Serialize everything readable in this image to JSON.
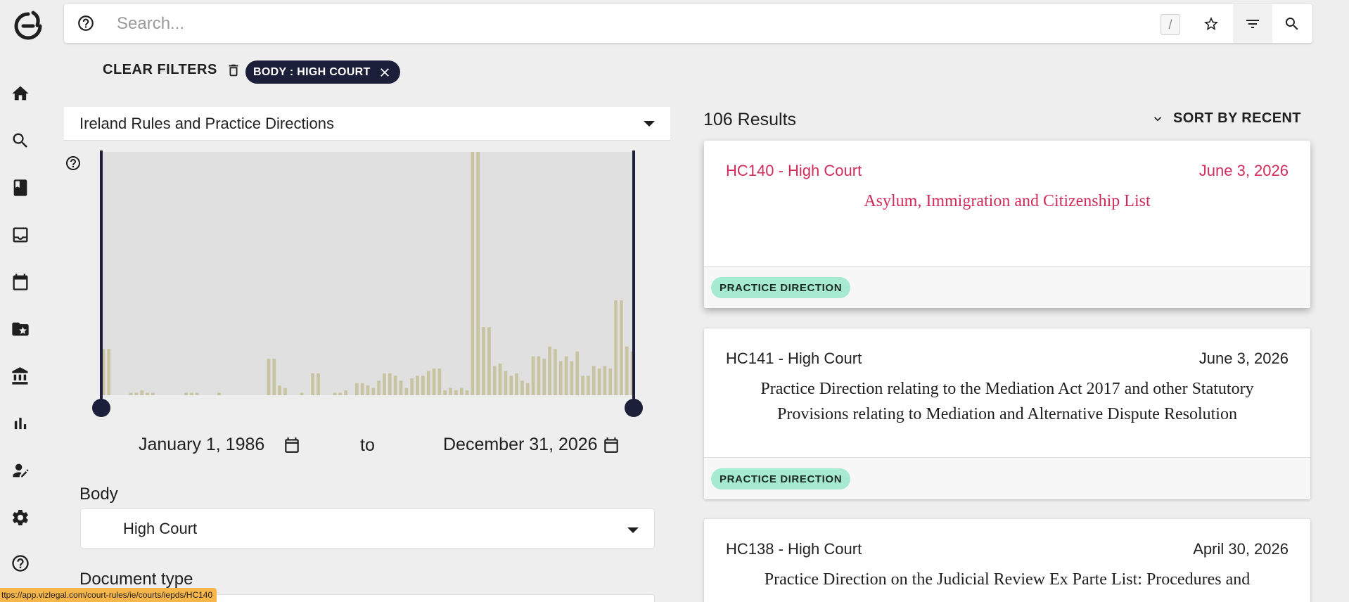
{
  "search": {
    "placeholder": "Search...",
    "shortcut": "/"
  },
  "filters": {
    "clear_label": "CLEAR FILTERS",
    "active_chip": "BODY : HIGH COURT",
    "collection": "Ireland Rules and Practice Directions",
    "date_from": "January 1, 1986",
    "date_to": "December 31, 2026",
    "to_label": "to",
    "body_label": "Body",
    "body_value": "High Court",
    "doctype_label": "Document type"
  },
  "results": {
    "count_label": "106 Results",
    "sort_label": "SORT BY RECENT",
    "cards": [
      {
        "code": "HC140 - High Court",
        "date": "June 3, 2026",
        "title": "Asylum, Immigration and Citizenship List",
        "tag": "PRACTICE DIRECTION"
      },
      {
        "code": "HC141 - High Court",
        "date": "June 3, 2026",
        "title": "Practice Direction relating to the Mediation Act 2017 and other Statutory Provisions relating to Mediation and Alternative Dispute Resolution",
        "tag": "PRACTICE DIRECTION"
      },
      {
        "code": "HC138 - High Court",
        "date": "April 30, 2026",
        "title": "Practice Direction on the Judicial Review Ex Parte List: Procedures and",
        "tag": ""
      }
    ]
  },
  "histogram": {
    "date_range_selected": [
      "January 1, 1986",
      "December 31, 2026"
    ],
    "bar_heights_rel": [
      0.19,
      0.19,
      0,
      0,
      0,
      0.01,
      0.01,
      0.02,
      0.01,
      0.01,
      0,
      0,
      0,
      0,
      0,
      0.01,
      0.01,
      0.01,
      0,
      0,
      0,
      0.01,
      0,
      0,
      0,
      0,
      0,
      0,
      0,
      0,
      0.15,
      0.15,
      0.04,
      0.03,
      0,
      0,
      0.01,
      0,
      0.09,
      0.09,
      0,
      0,
      0.01,
      0.01,
      0.02,
      0,
      0.05,
      0.05,
      0.04,
      0.03,
      0.06,
      0.09,
      0.09,
      0.08,
      0.06,
      0.03,
      0.07,
      0.08,
      0.08,
      0.1,
      0.11,
      0.11,
      0.02,
      0.03,
      0.02,
      0.03,
      0.02,
      1,
      1,
      0.28,
      0.28,
      0.12,
      0.13,
      0.1,
      0.08,
      0.09,
      0.06,
      0.05,
      0.16,
      0.16,
      0.15,
      0.2,
      0.19,
      0.14,
      0.16,
      0.14,
      0.18,
      0.08,
      0.08,
      0.12,
      0.11,
      0.12,
      0.11,
      0.39,
      0.39,
      0.2,
      0.18
    ]
  },
  "status_bar": {
    "url": "ttps://app.vizlegal.com/court-rules/ie/courts/iepds/HC140"
  },
  "colors": {
    "accent": "#d12d5a",
    "navy": "#1c1f3a",
    "tag_bg": "#a6ead2"
  }
}
